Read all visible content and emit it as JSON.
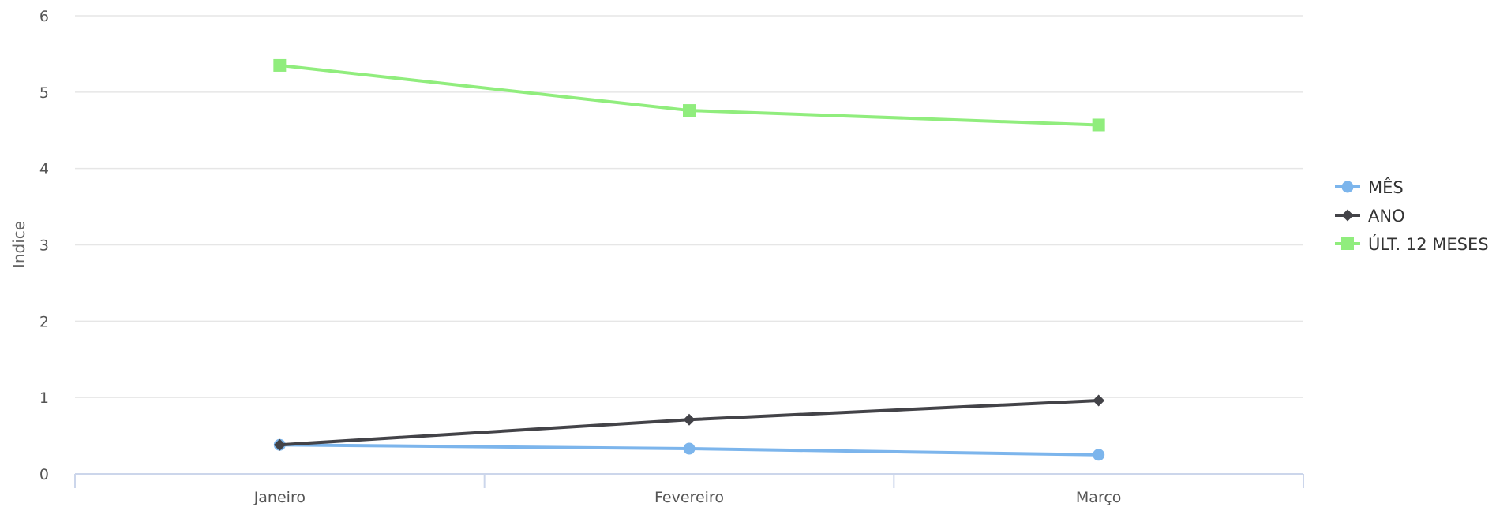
{
  "chart_data": {
    "type": "line",
    "categories": [
      "Janeiro",
      "Fevereiro",
      "Março"
    ],
    "ylabel": "Indice",
    "ylim": [
      0,
      6
    ],
    "yticks": [
      0,
      1,
      2,
      3,
      4,
      5,
      6
    ],
    "grid": true,
    "legend": "right",
    "series": [
      {
        "name": "MÊS",
        "values": [
          0.38,
          0.33,
          0.25
        ],
        "color": "#7cb5ec",
        "marker": "circle"
      },
      {
        "name": "ANO",
        "values": [
          0.38,
          0.71,
          0.96
        ],
        "color": "#434348",
        "marker": "diamond"
      },
      {
        "name": "ÚLT. 12 MESES",
        "values": [
          5.35,
          4.76,
          4.57
        ],
        "color": "#90ed7d",
        "marker": "square"
      }
    ]
  }
}
